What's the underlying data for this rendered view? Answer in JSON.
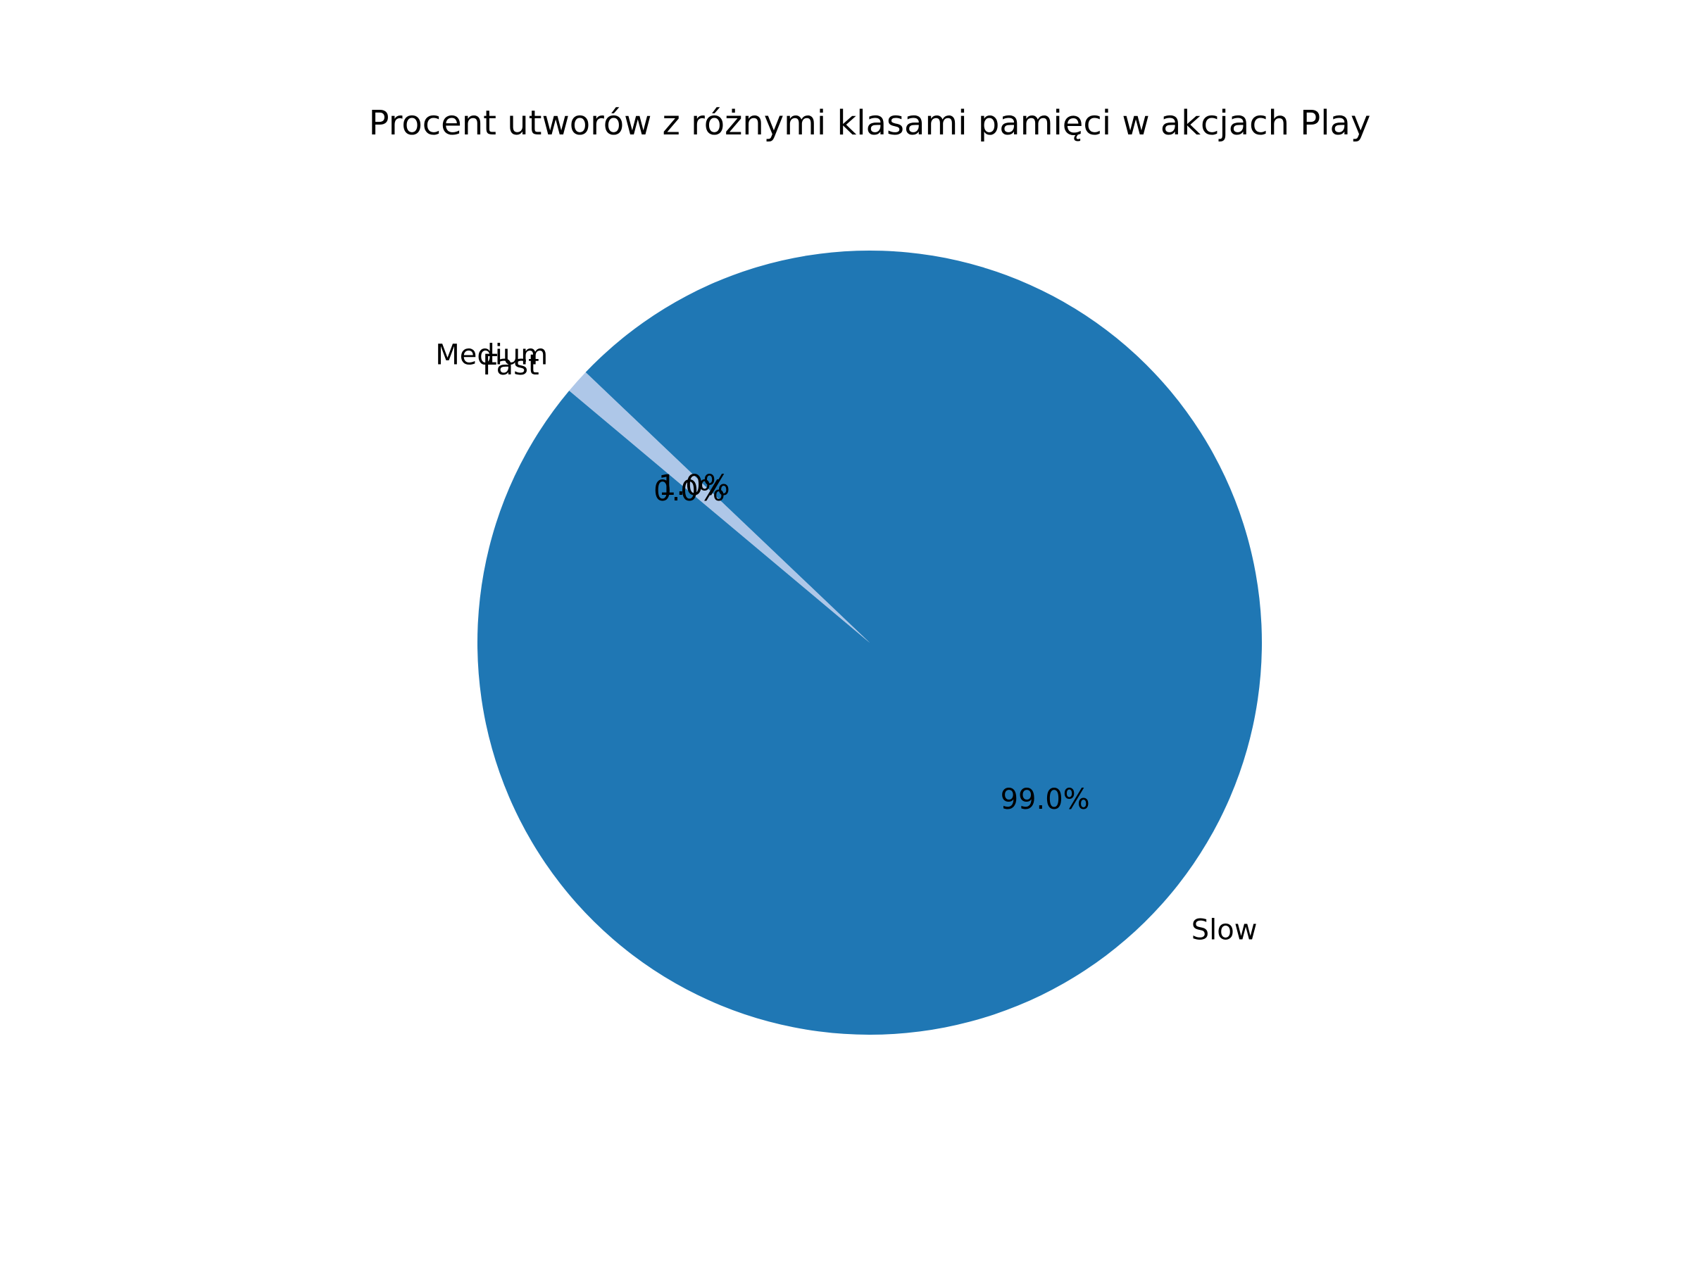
{
  "chart_data": {
    "type": "pie",
    "title": "Procent utworów z różnymi klasami pamięci w akcjach Play",
    "slices": [
      {
        "label": "Slow",
        "value": 99.0,
        "pct_label": "99.0%",
        "color": "#1f77b4"
      },
      {
        "label": "Medium",
        "value": 1.0,
        "pct_label": "1.0%",
        "color": "#aec7e8"
      },
      {
        "label": "Fast",
        "value": 0.0,
        "pct_label": "0.0%",
        "color": "#ff7f0e"
      }
    ],
    "start_angle_deg": 140,
    "direction": "counterclockwise"
  }
}
